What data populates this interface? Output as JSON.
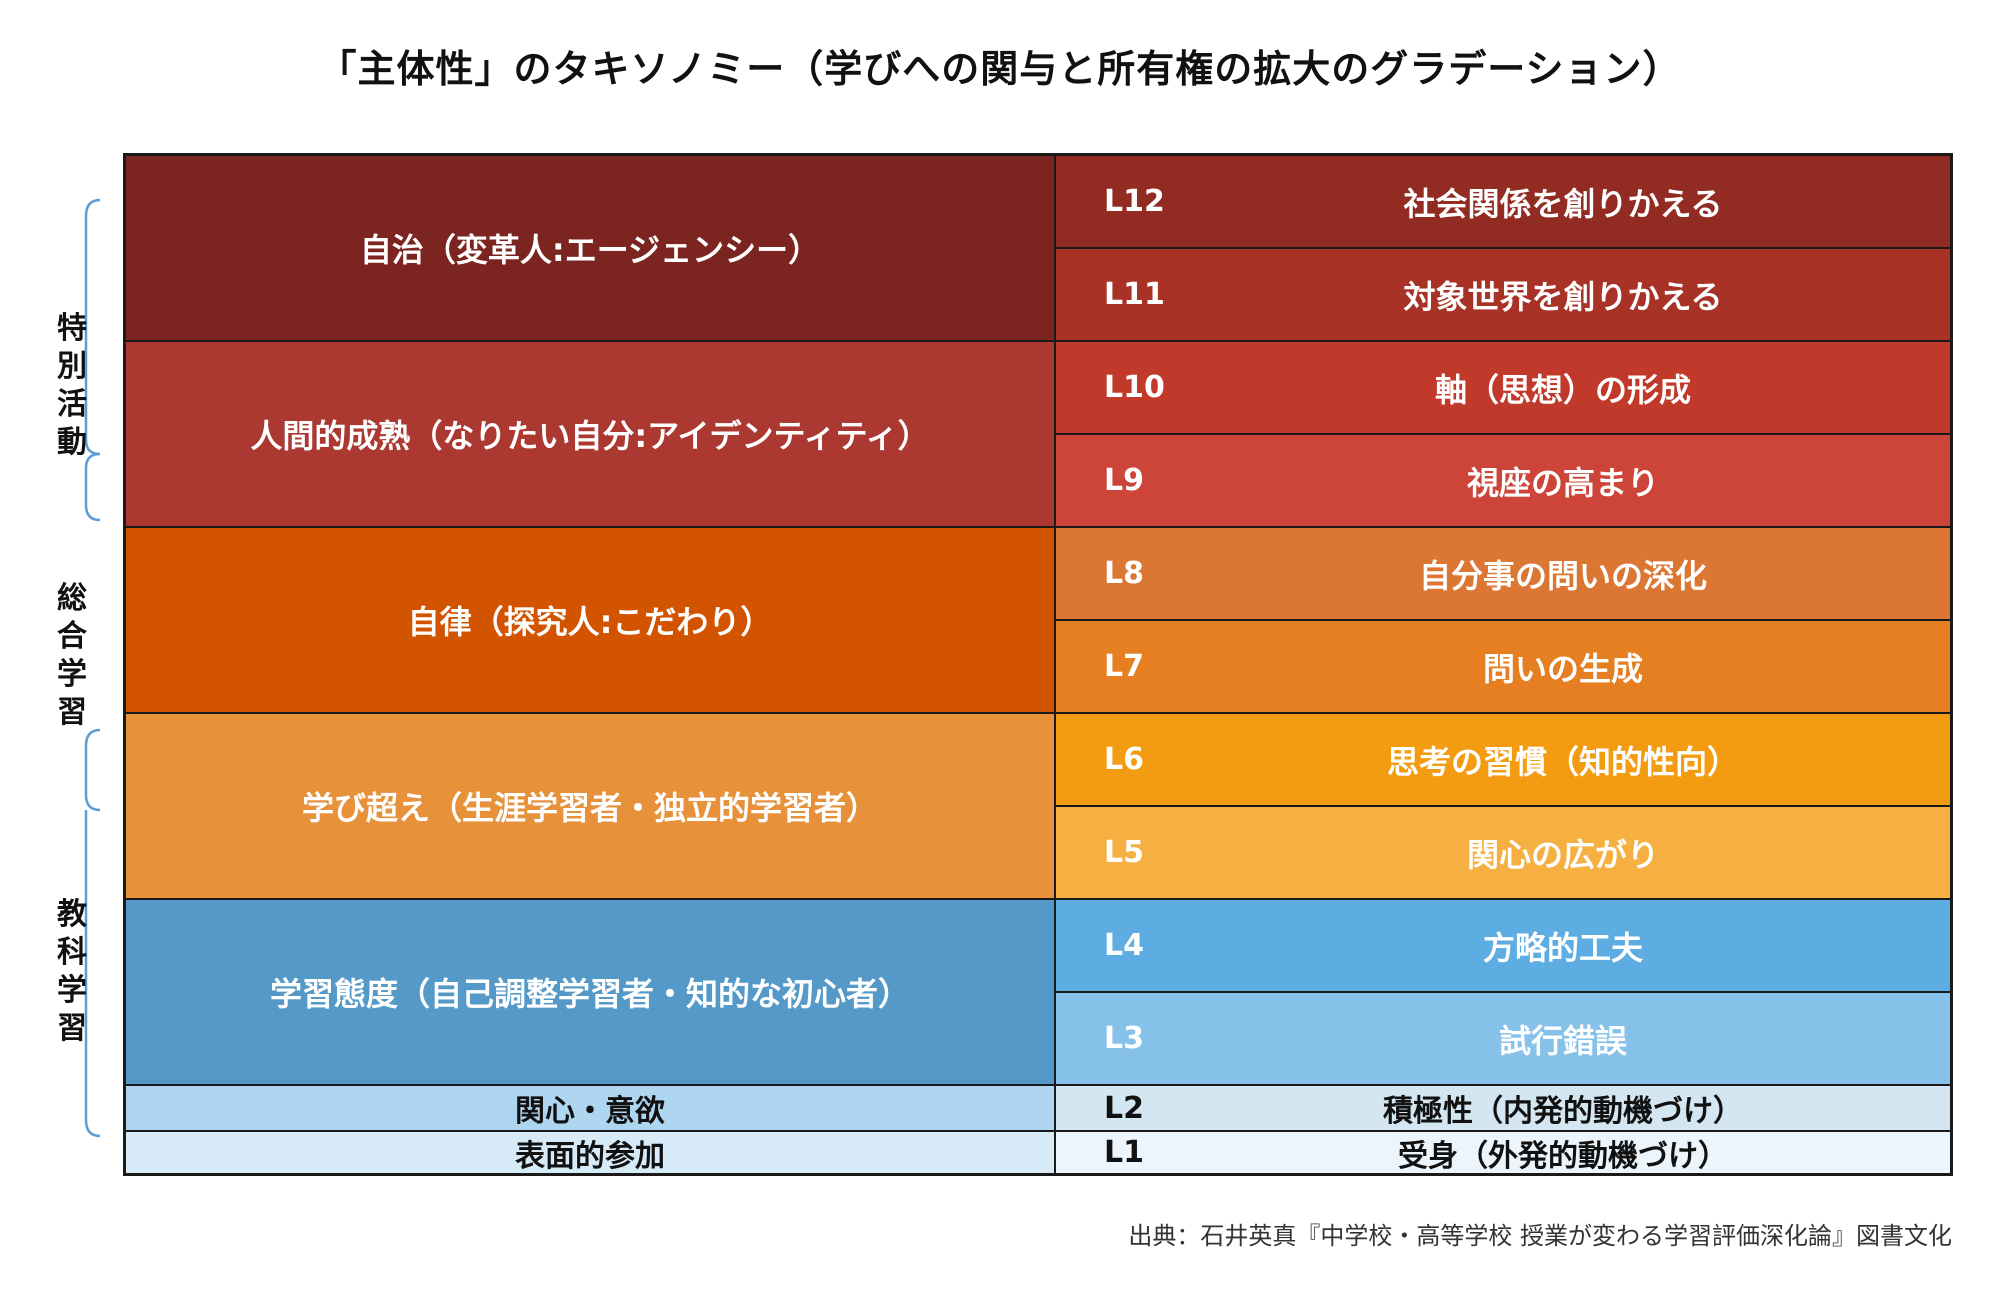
{
  "title": "「主体性」のタキソノミー（学びへの関与と所有権の拡大のグラデーション）",
  "side_labels": [
    "特別活動",
    "総合学習",
    "教科学習"
  ],
  "groups": [
    {
      "label": "自治（変革人:エージェンシー）",
      "color": "#7b2420"
    },
    {
      "label": "人間的成熟（なりたい自分:アイデンティティ）",
      "color": "#ab3831"
    },
    {
      "label": "自律（探究人:こだわり）",
      "color": "#d35400"
    },
    {
      "label": "学び超え（生涯学習者・独立的学習者）",
      "color": "#e8913b"
    },
    {
      "label": "学習態度（自己調整学習者・知的な初心者）",
      "color": "#5499c7"
    },
    {
      "label": "関心・意欲",
      "color": "#aed6f1"
    },
    {
      "label": "表面的参加",
      "color": "#d6eaf8"
    }
  ],
  "levels": [
    {
      "code": "L12",
      "label": "社会関係を創りかえる",
      "color": "#922b21"
    },
    {
      "code": "L11",
      "label": "対象世界を創りかえる",
      "color": "#a93226"
    },
    {
      "code": "L10",
      "label": "軸（思想）の形成",
      "color": "#c0392b"
    },
    {
      "code": "L9",
      "label": "視座の高まり",
      "color": "#cd4438"
    },
    {
      "code": "L8",
      "label": "自分事の問いの深化",
      "color": "#dc7633"
    },
    {
      "code": "L7",
      "label": "問いの生成",
      "color": "#e67e22"
    },
    {
      "code": "L6",
      "label": "思考の習慣（知的性向）",
      "color": "#f39c12"
    },
    {
      "code": "L5",
      "label": "関心の広がり",
      "color": "#f5b041"
    },
    {
      "code": "L4",
      "label": "方略的工夫",
      "color": "#5dade2"
    },
    {
      "code": "L3",
      "label": "試行錯誤",
      "color": "#85c1e9"
    },
    {
      "code": "L2",
      "label": "積極性（内発的動機づけ）",
      "color": "#d4e6f1"
    },
    {
      "code": "L1",
      "label": "受身（外発的動機づけ）",
      "color": "#ebf5fb"
    }
  ],
  "source": "出典：石井英真『中学校・高等学校 授業が変わる学習評価深化論』図書文化"
}
